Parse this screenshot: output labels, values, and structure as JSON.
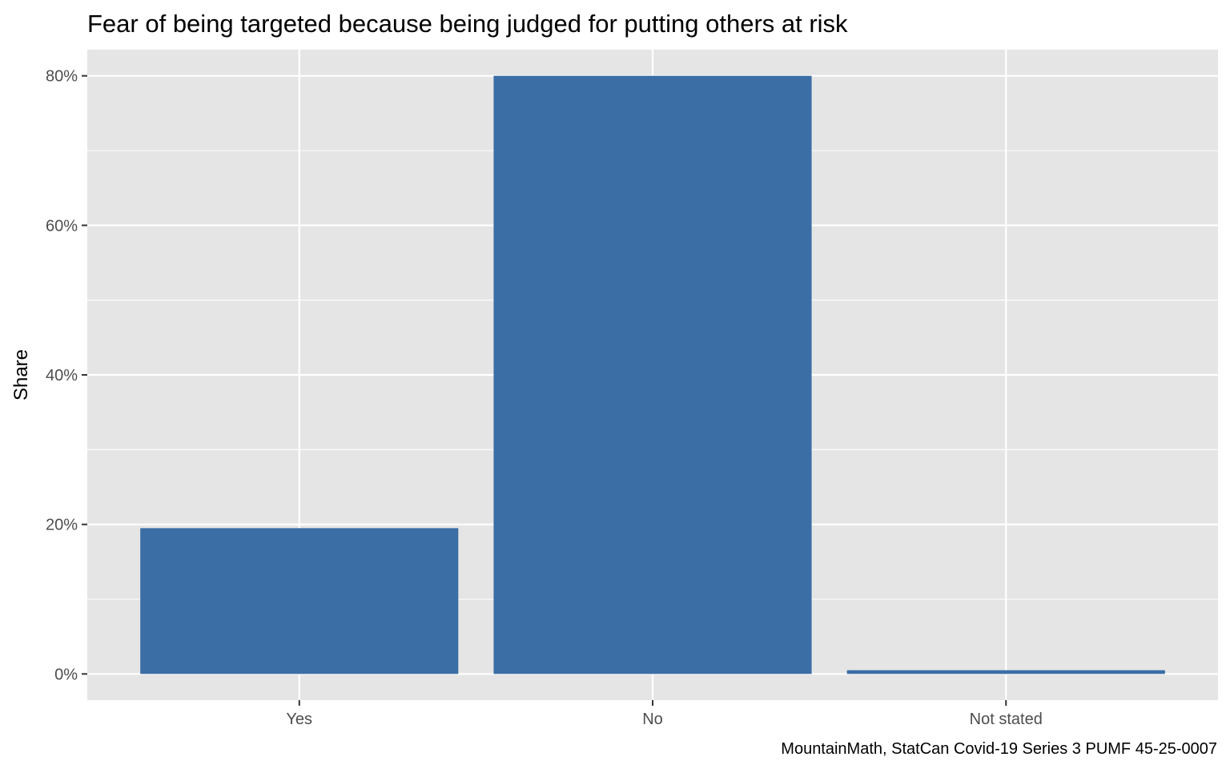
{
  "chart_data": {
    "type": "bar",
    "title": "Fear of being targeted because being judged for putting others at risk",
    "xlabel": "",
    "ylabel": "Share",
    "caption": "MountainMath, StatCan Covid-19 Series 3 PUMF 45-25-0007",
    "categories": [
      "Yes",
      "No",
      "Not stated"
    ],
    "values": [
      0.195,
      0.8,
      0.005
    ],
    "ylim": [
      -0.035,
      0.835
    ],
    "y_ticks": [
      0,
      0.2,
      0.4,
      0.6,
      0.8
    ],
    "y_tick_labels": [
      "0%",
      "20%",
      "40%",
      "60%",
      "80%"
    ],
    "y_minor_ticks": [
      0.1,
      0.3,
      0.5,
      0.7
    ],
    "grid": true,
    "legend": "none",
    "colors": {
      "bar": "#3a6ea5",
      "panel": "#e5e5e5",
      "grid": "#ffffff",
      "tick": "#333333"
    }
  }
}
